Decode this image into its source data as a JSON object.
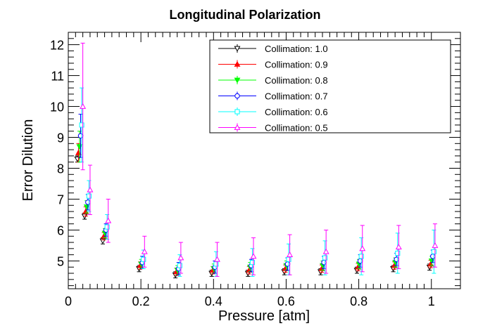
{
  "chart_data": {
    "type": "scatter",
    "title": "Longitudinal Polarization",
    "xlabel": "Pressure [atm]",
    "ylabel": "Error Dilution",
    "xlim": [
      0,
      1.08
    ],
    "ylim": [
      4.1,
      12.4
    ],
    "x_ticks": [
      "0",
      "0.2",
      "0.4",
      "0.6",
      "0.8",
      "1"
    ],
    "y_ticks": [
      "5",
      "6",
      "7",
      "8",
      "9",
      "10",
      "11",
      "12"
    ],
    "legend_position": "top-right",
    "grid": false,
    "series": [
      {
        "name": "Collimation: 1.0",
        "color": "#000000",
        "marker": "triangle-down-open",
        "points": [
          {
            "x": 0.025,
            "y": 8.3,
            "err": 0.1
          },
          {
            "x": 0.045,
            "y": 6.45,
            "err": 0.1
          },
          {
            "x": 0.095,
            "y": 5.65,
            "err": 0.1
          },
          {
            "x": 0.195,
            "y": 4.75,
            "err": 0.1
          },
          {
            "x": 0.295,
            "y": 4.55,
            "err": 0.1
          },
          {
            "x": 0.395,
            "y": 4.6,
            "err": 0.1
          },
          {
            "x": 0.495,
            "y": 4.6,
            "err": 0.1
          },
          {
            "x": 0.595,
            "y": 4.65,
            "err": 0.1
          },
          {
            "x": 0.695,
            "y": 4.65,
            "err": 0.1
          },
          {
            "x": 0.795,
            "y": 4.7,
            "err": 0.1
          },
          {
            "x": 0.895,
            "y": 4.75,
            "err": 0.1
          },
          {
            "x": 0.995,
            "y": 4.8,
            "err": 0.1
          }
        ]
      },
      {
        "name": "Collimation: 0.9",
        "color": "#ff0000",
        "marker": "triangle-up-filled",
        "points": [
          {
            "x": 0.028,
            "y": 8.5,
            "err": 0.3
          },
          {
            "x": 0.048,
            "y": 6.6,
            "err": 0.15
          },
          {
            "x": 0.098,
            "y": 5.8,
            "err": 0.12
          },
          {
            "x": 0.198,
            "y": 4.85,
            "err": 0.12
          },
          {
            "x": 0.298,
            "y": 4.65,
            "err": 0.12
          },
          {
            "x": 0.398,
            "y": 4.7,
            "err": 0.12
          },
          {
            "x": 0.498,
            "y": 4.7,
            "err": 0.12
          },
          {
            "x": 0.598,
            "y": 4.75,
            "err": 0.12
          },
          {
            "x": 0.698,
            "y": 4.75,
            "err": 0.12
          },
          {
            "x": 0.798,
            "y": 4.8,
            "err": 0.12
          },
          {
            "x": 0.898,
            "y": 4.85,
            "err": 0.12
          },
          {
            "x": 0.998,
            "y": 4.9,
            "err": 0.12
          }
        ]
      },
      {
        "name": "Collimation: 0.8",
        "color": "#00ff00",
        "marker": "triangle-down-filled",
        "points": [
          {
            "x": 0.031,
            "y": 8.7,
            "err": 0.5
          },
          {
            "x": 0.051,
            "y": 6.75,
            "err": 0.2
          },
          {
            "x": 0.101,
            "y": 5.9,
            "err": 0.15
          },
          {
            "x": 0.201,
            "y": 4.9,
            "err": 0.15
          },
          {
            "x": 0.301,
            "y": 4.7,
            "err": 0.15
          },
          {
            "x": 0.401,
            "y": 4.75,
            "err": 0.15
          },
          {
            "x": 0.501,
            "y": 4.8,
            "err": 0.15
          },
          {
            "x": 0.601,
            "y": 4.85,
            "err": 0.15
          },
          {
            "x": 0.701,
            "y": 4.85,
            "err": 0.15
          },
          {
            "x": 0.801,
            "y": 4.9,
            "err": 0.15
          },
          {
            "x": 0.901,
            "y": 4.95,
            "err": 0.15
          },
          {
            "x": 1.001,
            "y": 5.0,
            "err": 0.15
          }
        ]
      },
      {
        "name": "Collimation: 0.7",
        "color": "#0000ff",
        "marker": "circle-open",
        "points": [
          {
            "x": 0.034,
            "y": 9.05,
            "err": 0.7
          },
          {
            "x": 0.054,
            "y": 6.9,
            "err": 0.25
          },
          {
            "x": 0.104,
            "y": 6.0,
            "err": 0.2
          },
          {
            "x": 0.204,
            "y": 4.95,
            "err": 0.2
          },
          {
            "x": 0.304,
            "y": 4.75,
            "err": 0.2
          },
          {
            "x": 0.404,
            "y": 4.8,
            "err": 0.2
          },
          {
            "x": 0.504,
            "y": 4.85,
            "err": 0.2
          },
          {
            "x": 0.604,
            "y": 4.9,
            "err": 0.2
          },
          {
            "x": 0.704,
            "y": 4.95,
            "err": 0.2
          },
          {
            "x": 0.804,
            "y": 5.0,
            "err": 0.2
          },
          {
            "x": 0.904,
            "y": 5.05,
            "err": 0.2
          },
          {
            "x": 1.004,
            "y": 5.15,
            "err": 0.2
          }
        ]
      },
      {
        "name": "Collimation: 0.6",
        "color": "#00ffff",
        "marker": "square-open",
        "points": [
          {
            "x": 0.037,
            "y": 9.4,
            "err": 1.2
          },
          {
            "x": 0.057,
            "y": 7.1,
            "err": 0.5
          },
          {
            "x": 0.107,
            "y": 6.1,
            "err": 0.4
          },
          {
            "x": 0.207,
            "y": 5.05,
            "err": 0.3
          },
          {
            "x": 0.307,
            "y": 4.85,
            "err": 0.35
          },
          {
            "x": 0.407,
            "y": 4.9,
            "err": 0.4
          },
          {
            "x": 0.507,
            "y": 4.95,
            "err": 0.45
          },
          {
            "x": 0.607,
            "y": 5.05,
            "err": 0.5
          },
          {
            "x": 0.707,
            "y": 5.1,
            "err": 0.55
          },
          {
            "x": 0.807,
            "y": 5.15,
            "err": 0.6
          },
          {
            "x": 0.907,
            "y": 5.25,
            "err": 0.65
          },
          {
            "x": 1.007,
            "y": 5.3,
            "err": 0.7
          }
        ]
      },
      {
        "name": "Collimation: 0.5",
        "color": "#ff00ff",
        "marker": "triangle-up-open",
        "points": [
          {
            "x": 0.04,
            "y": 10.0,
            "err": 2.05
          },
          {
            "x": 0.06,
            "y": 7.3,
            "err": 0.8
          },
          {
            "x": 0.11,
            "y": 6.3,
            "err": 0.7
          },
          {
            "x": 0.21,
            "y": 5.3,
            "err": 0.5
          },
          {
            "x": 0.31,
            "y": 5.1,
            "err": 0.5
          },
          {
            "x": 0.41,
            "y": 5.05,
            "err": 0.55
          },
          {
            "x": 0.51,
            "y": 5.15,
            "err": 0.6
          },
          {
            "x": 0.61,
            "y": 5.2,
            "err": 0.65
          },
          {
            "x": 0.71,
            "y": 5.3,
            "err": 0.7
          },
          {
            "x": 0.81,
            "y": 5.4,
            "err": 0.75
          },
          {
            "x": 0.91,
            "y": 5.45,
            "err": 0.7
          },
          {
            "x": 1.01,
            "y": 5.5,
            "err": 0.7
          }
        ]
      }
    ]
  }
}
